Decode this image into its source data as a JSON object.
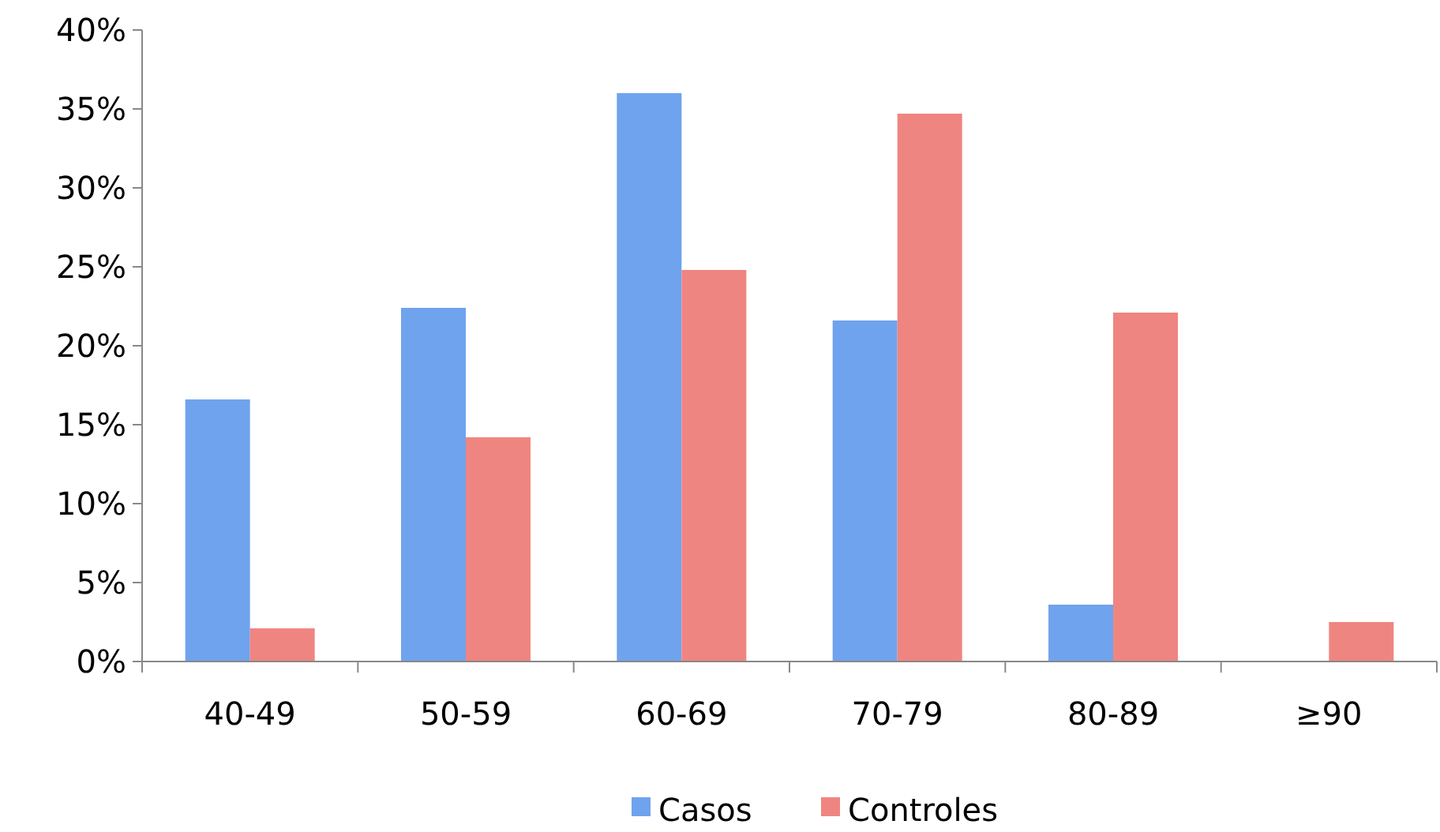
{
  "chart_data": {
    "type": "bar",
    "categories": [
      "40-49",
      "50-59",
      "60-69",
      "70-79",
      "80-89",
      "≥90"
    ],
    "series": [
      {
        "name": "Casos",
        "color": "#6fa3ee",
        "values": [
          16.6,
          22.4,
          36.0,
          21.6,
          3.6,
          0
        ]
      },
      {
        "name": "Controles",
        "color": "#ef8580",
        "values": [
          2.1,
          14.2,
          24.8,
          34.7,
          22.1,
          2.5
        ]
      }
    ],
    "ylim": [
      0,
      40
    ],
    "yticks": [
      {
        "value": 0,
        "label": "0%"
      },
      {
        "value": 5,
        "label": "5%"
      },
      {
        "value": 10,
        "label": "10%"
      },
      {
        "value": 15,
        "label": "15%"
      },
      {
        "value": 20,
        "label": "20%"
      },
      {
        "value": 25,
        "label": "25%"
      },
      {
        "value": 30,
        "label": "30%"
      },
      {
        "value": 35,
        "label": "35%"
      },
      {
        "value": 40,
        "label": "40%"
      }
    ],
    "grid": false,
    "legend": "bottom"
  }
}
